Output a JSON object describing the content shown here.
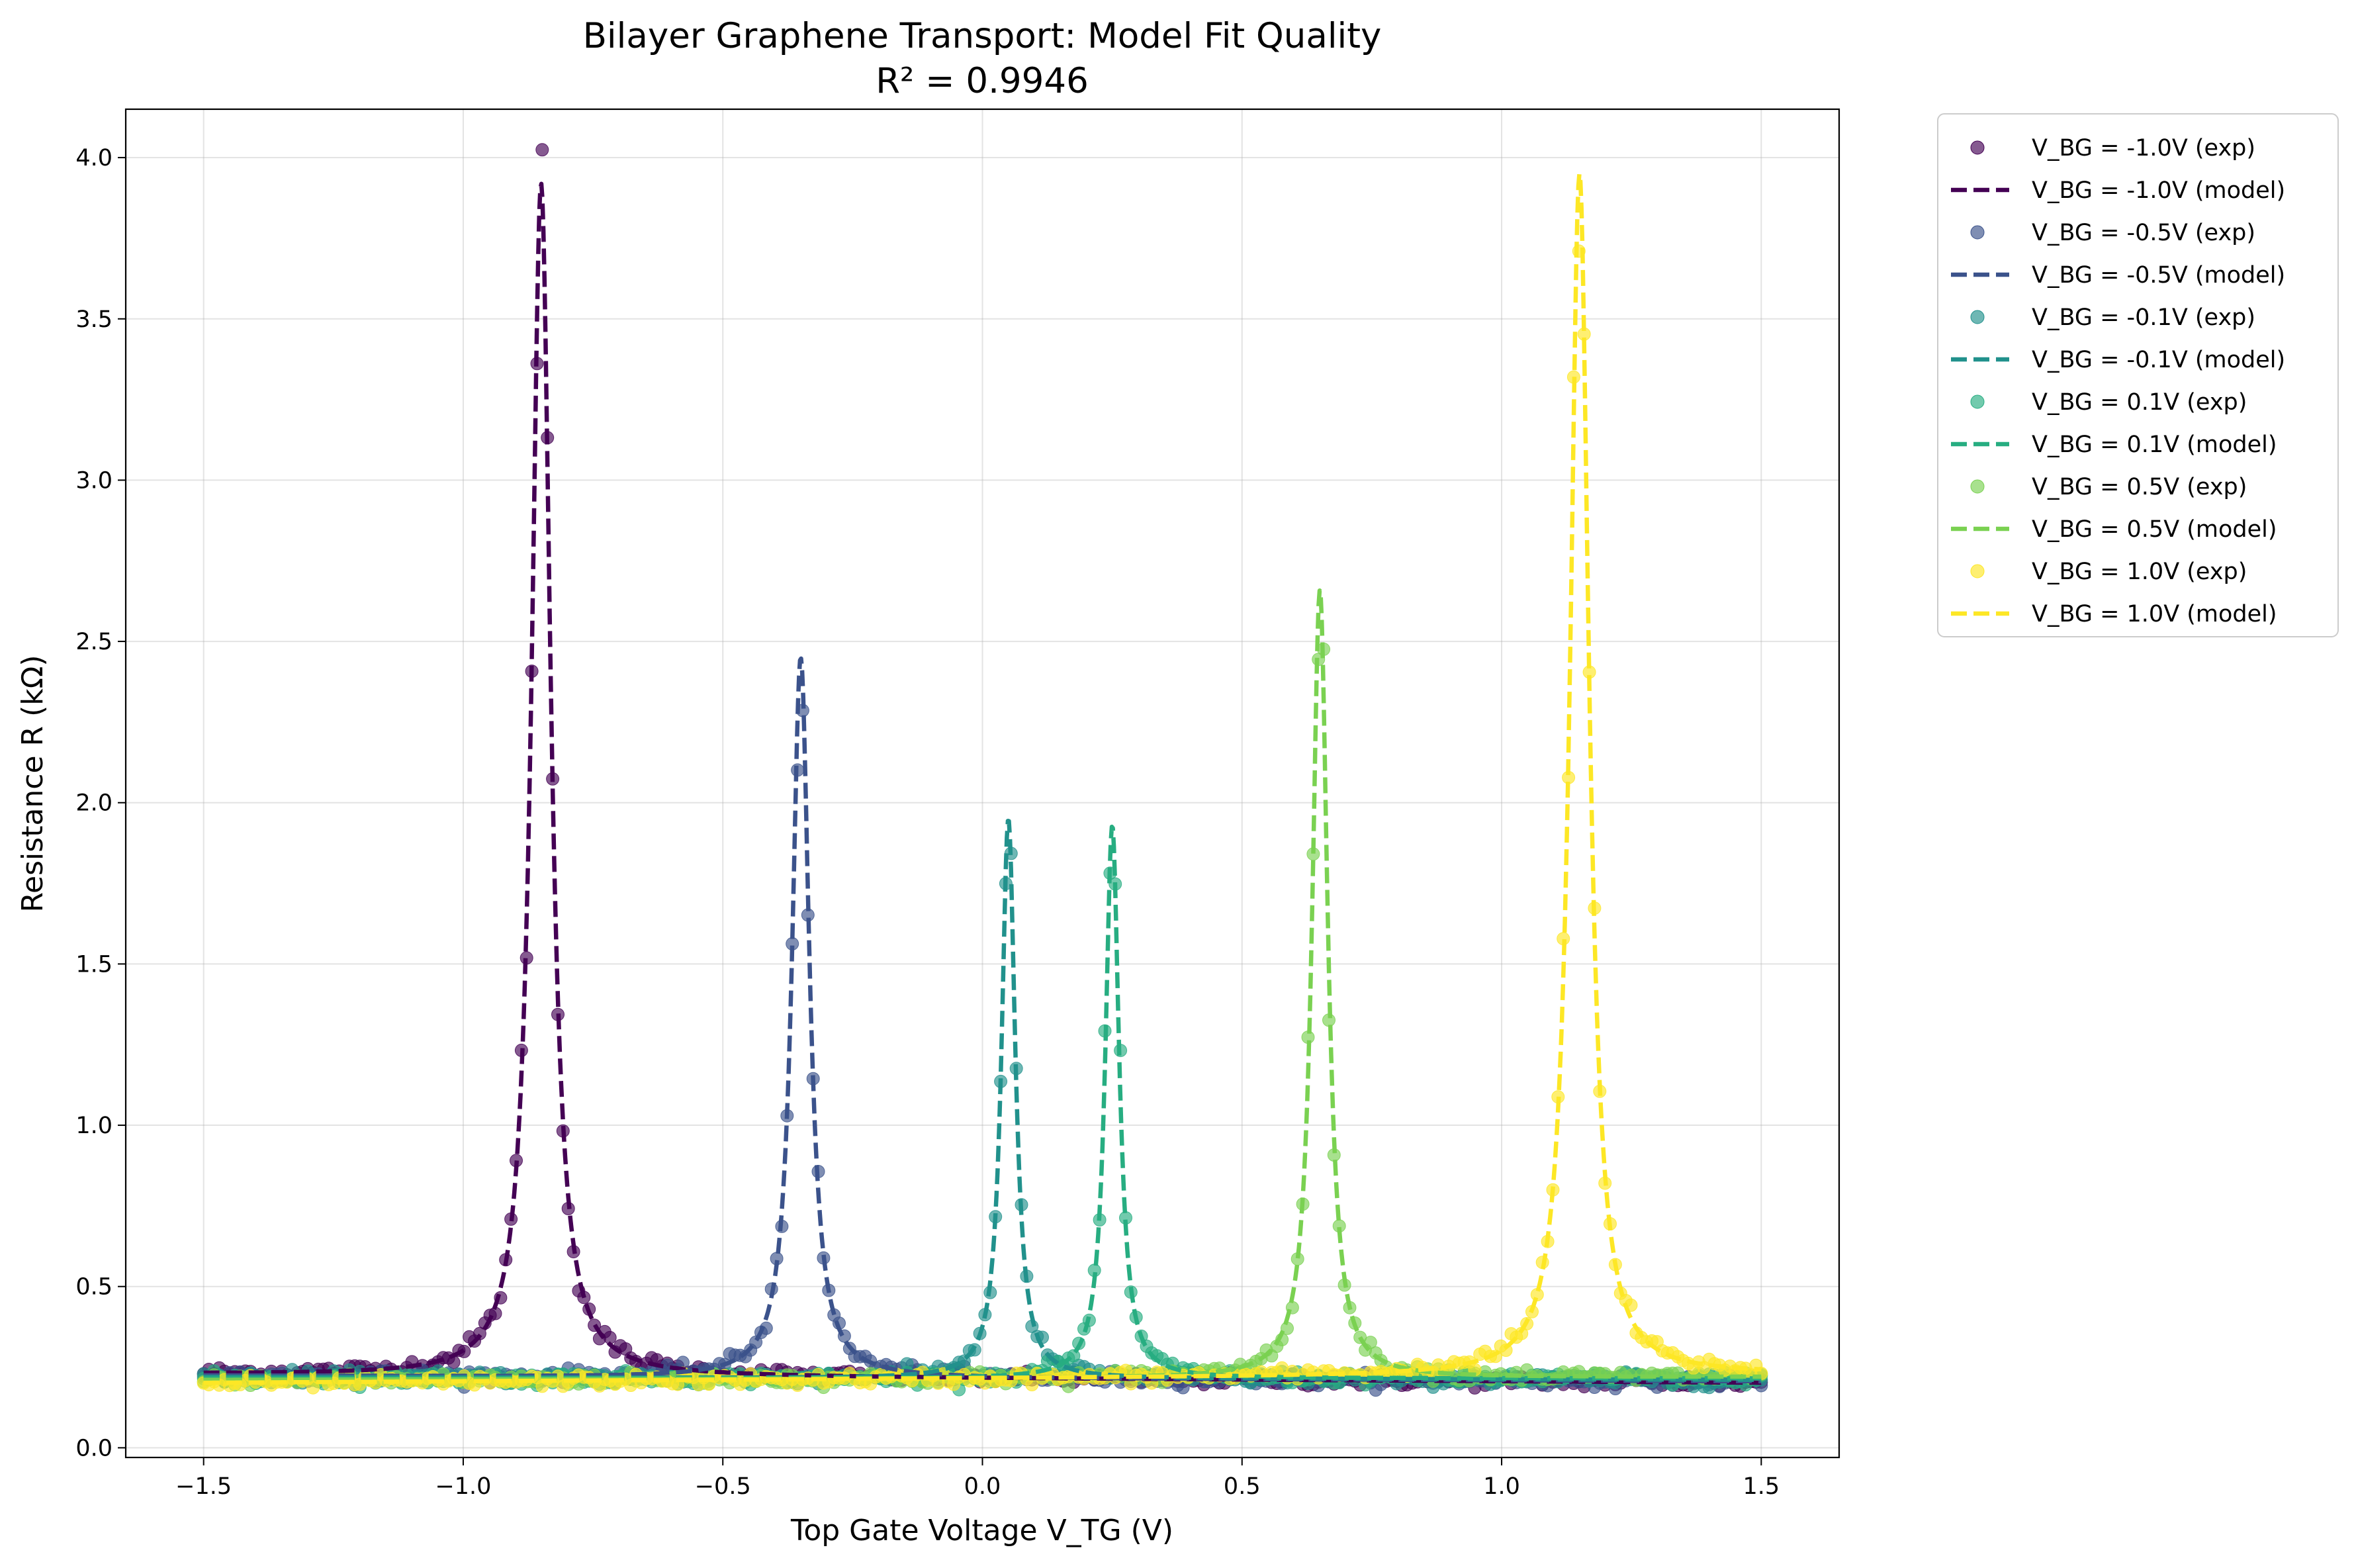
{
  "chart_data": {
    "type": "scatter",
    "title": "Bilayer Graphene Transport: Model Fit Quality",
    "subtitle": "R² = 0.9946",
    "xlabel": "Top Gate Voltage V_TG (V)",
    "ylabel": "Resistance R (kΩ)",
    "xlim": [
      -1.65,
      1.65
    ],
    "ylim": [
      -0.03,
      4.15
    ],
    "xticks": [
      -1.5,
      -1.0,
      -0.5,
      0.0,
      0.5,
      1.0,
      1.5
    ],
    "xtick_labels": [
      "−1.5",
      "−1.0",
      "−0.5",
      "0.0",
      "0.5",
      "1.0",
      "1.5"
    ],
    "yticks": [
      0.0,
      0.5,
      1.0,
      1.5,
      2.0,
      2.5,
      3.0,
      3.5,
      4.0
    ],
    "ytick_labels": [
      "0.0",
      "0.5",
      "1.0",
      "1.5",
      "2.0",
      "2.5",
      "3.0",
      "3.5",
      "4.0"
    ],
    "grid": true,
    "legend_position": "outside-right",
    "series": [
      {
        "name": "V_BG = -1.0V",
        "exp_label": "V_BG = -1.0V (exp)",
        "model_label": "V_BG = -1.0V (model)",
        "color": "#440154",
        "v_dirac": -0.85,
        "peak": 3.92,
        "base_left": 0.23,
        "base_right": 0.2,
        "width": 0.022
      },
      {
        "name": "V_BG = -0.5V",
        "exp_label": "V_BG = -0.5V (exp)",
        "model_label": "V_BG = -0.5V (model)",
        "color": "#3b528b",
        "v_dirac": -0.35,
        "peak": 2.45,
        "base_left": 0.225,
        "base_right": 0.205,
        "width": 0.02
      },
      {
        "name": "V_BG = -0.1V",
        "exp_label": "V_BG = -0.1V (exp)",
        "model_label": "V_BG = -0.1V (model)",
        "color": "#21918c",
        "v_dirac": 0.05,
        "peak": 1.95,
        "base_left": 0.22,
        "base_right": 0.21,
        "width": 0.016
      },
      {
        "name": "V_BG = 0.1V",
        "exp_label": "V_BG = 0.1V (exp)",
        "model_label": "V_BG = 0.1V (model)",
        "color": "#27ad81",
        "v_dirac": 0.25,
        "peak": 1.93,
        "base_left": 0.215,
        "base_right": 0.215,
        "width": 0.016
      },
      {
        "name": "V_BG = 0.5V",
        "exp_label": "V_BG = 0.5V (exp)",
        "model_label": "V_BG = 0.5V (model)",
        "color": "#7ad151",
        "v_dirac": 0.65,
        "peak": 2.66,
        "base_left": 0.21,
        "base_right": 0.22,
        "width": 0.018
      },
      {
        "name": "V_BG = 1.0V",
        "exp_label": "V_BG = 1.0V (exp)",
        "model_label": "V_BG = 1.0V (model)",
        "color": "#fde725",
        "v_dirac": 1.15,
        "peak": 3.95,
        "base_left": 0.2,
        "base_right": 0.23,
        "width": 0.022
      }
    ]
  }
}
